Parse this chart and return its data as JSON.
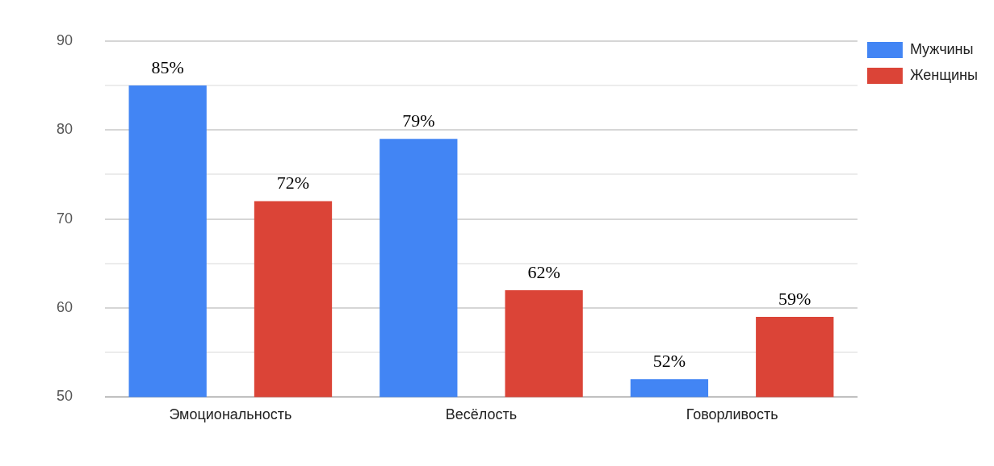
{
  "chart_data": {
    "type": "bar",
    "categories": [
      "Эмоциональность",
      "Весёлость",
      "Говорливость"
    ],
    "series": [
      {
        "name": "Мужчины",
        "color": "#4285f4",
        "values": [
          85,
          79,
          52
        ],
        "value_labels": [
          "85%",
          "79%",
          "52%"
        ]
      },
      {
        "name": "Женщины",
        "color": "#db4437",
        "values": [
          72,
          62,
          59
        ],
        "value_labels": [
          "72%",
          "62%",
          "59%"
        ]
      }
    ],
    "ylim": [
      50,
      90
    ],
    "yticks": [
      50,
      {
        "value": 55,
        "label": null
      },
      60,
      {
        "value": 65,
        "label": null
      },
      70,
      {
        "value": 75,
        "label": null
      },
      80,
      {
        "value": 85,
        "label": null
      },
      90
    ],
    "grid": "y",
    "legend": "top right"
  }
}
